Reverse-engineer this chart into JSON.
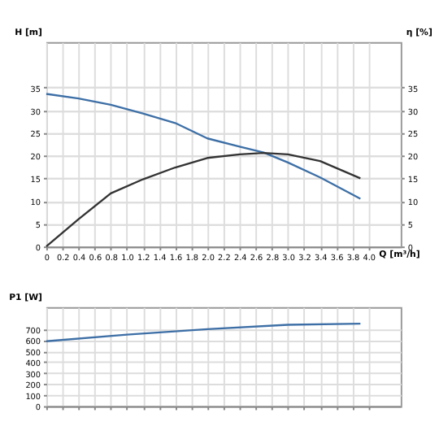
{
  "chart_data": [
    {
      "type": "line",
      "xlabel": "Q [m³/h]",
      "ylabel": "H [m]",
      "y2label": "η [%]",
      "xlim": [
        0,
        4.4
      ],
      "xticks": [
        0,
        0.2,
        0.4,
        0.6,
        0.8,
        {
          "value": 1,
          "label": "1.0"
        },
        1.2,
        1.4,
        1.6,
        1.8,
        {
          "value": 2,
          "label": "2.0"
        },
        2.2,
        2.4,
        2.6,
        2.8,
        {
          "value": 3,
          "label": "3.0"
        },
        3.2,
        3.4,
        3.6,
        3.8,
        {
          "value": 4,
          "label": "4.0"
        }
      ],
      "ylim": [
        0,
        45
      ],
      "yticks": [
        0,
        5,
        10,
        15,
        20,
        25,
        30,
        35
      ],
      "y2lim": [
        0,
        45
      ],
      "y2ticks": [
        0,
        5,
        10,
        15,
        20,
        25,
        30,
        35
      ],
      "grid": true,
      "x": [
        0,
        0.4,
        0.8,
        1.2,
        1.6,
        2.0,
        2.4,
        2.7,
        3.0,
        3.4,
        3.9
      ],
      "series": [
        {
          "color": "#3d6fa6",
          "values": [
            33.6,
            32.6,
            31.2,
            29.3,
            27.2,
            23.8,
            22.0,
            20.7,
            18.5,
            15.2,
            10.5
          ]
        },
        {
          "color": "#333333",
          "axis": "y2",
          "values": [
            0,
            6.0,
            11.7,
            14.8,
            17.4,
            19.5,
            20.3,
            20.6,
            20.3,
            18.8,
            15.0
          ]
        }
      ]
    },
    {
      "type": "line",
      "ylabel": "P1 [W]",
      "xlim": [
        0,
        4.4
      ],
      "xticks": [
        0,
        0.2,
        0.4,
        0.6,
        0.8,
        1,
        1.2,
        1.4,
        1.6,
        1.8,
        2,
        2.2,
        2.4,
        2.6,
        2.8,
        3,
        3.2,
        3.4,
        3.6,
        3.8,
        4
      ],
      "ylim": [
        0,
        900
      ],
      "yticks": [
        0,
        100,
        200,
        300,
        400,
        500,
        600,
        700
      ],
      "grid": true,
      "tick_labels": "y",
      "x": [
        0,
        1,
        2,
        3,
        3.9
      ],
      "series": [
        {
          "color": "#3d6fa6",
          "values": [
            590,
            650,
            700,
            740,
            750
          ]
        }
      ]
    }
  ]
}
